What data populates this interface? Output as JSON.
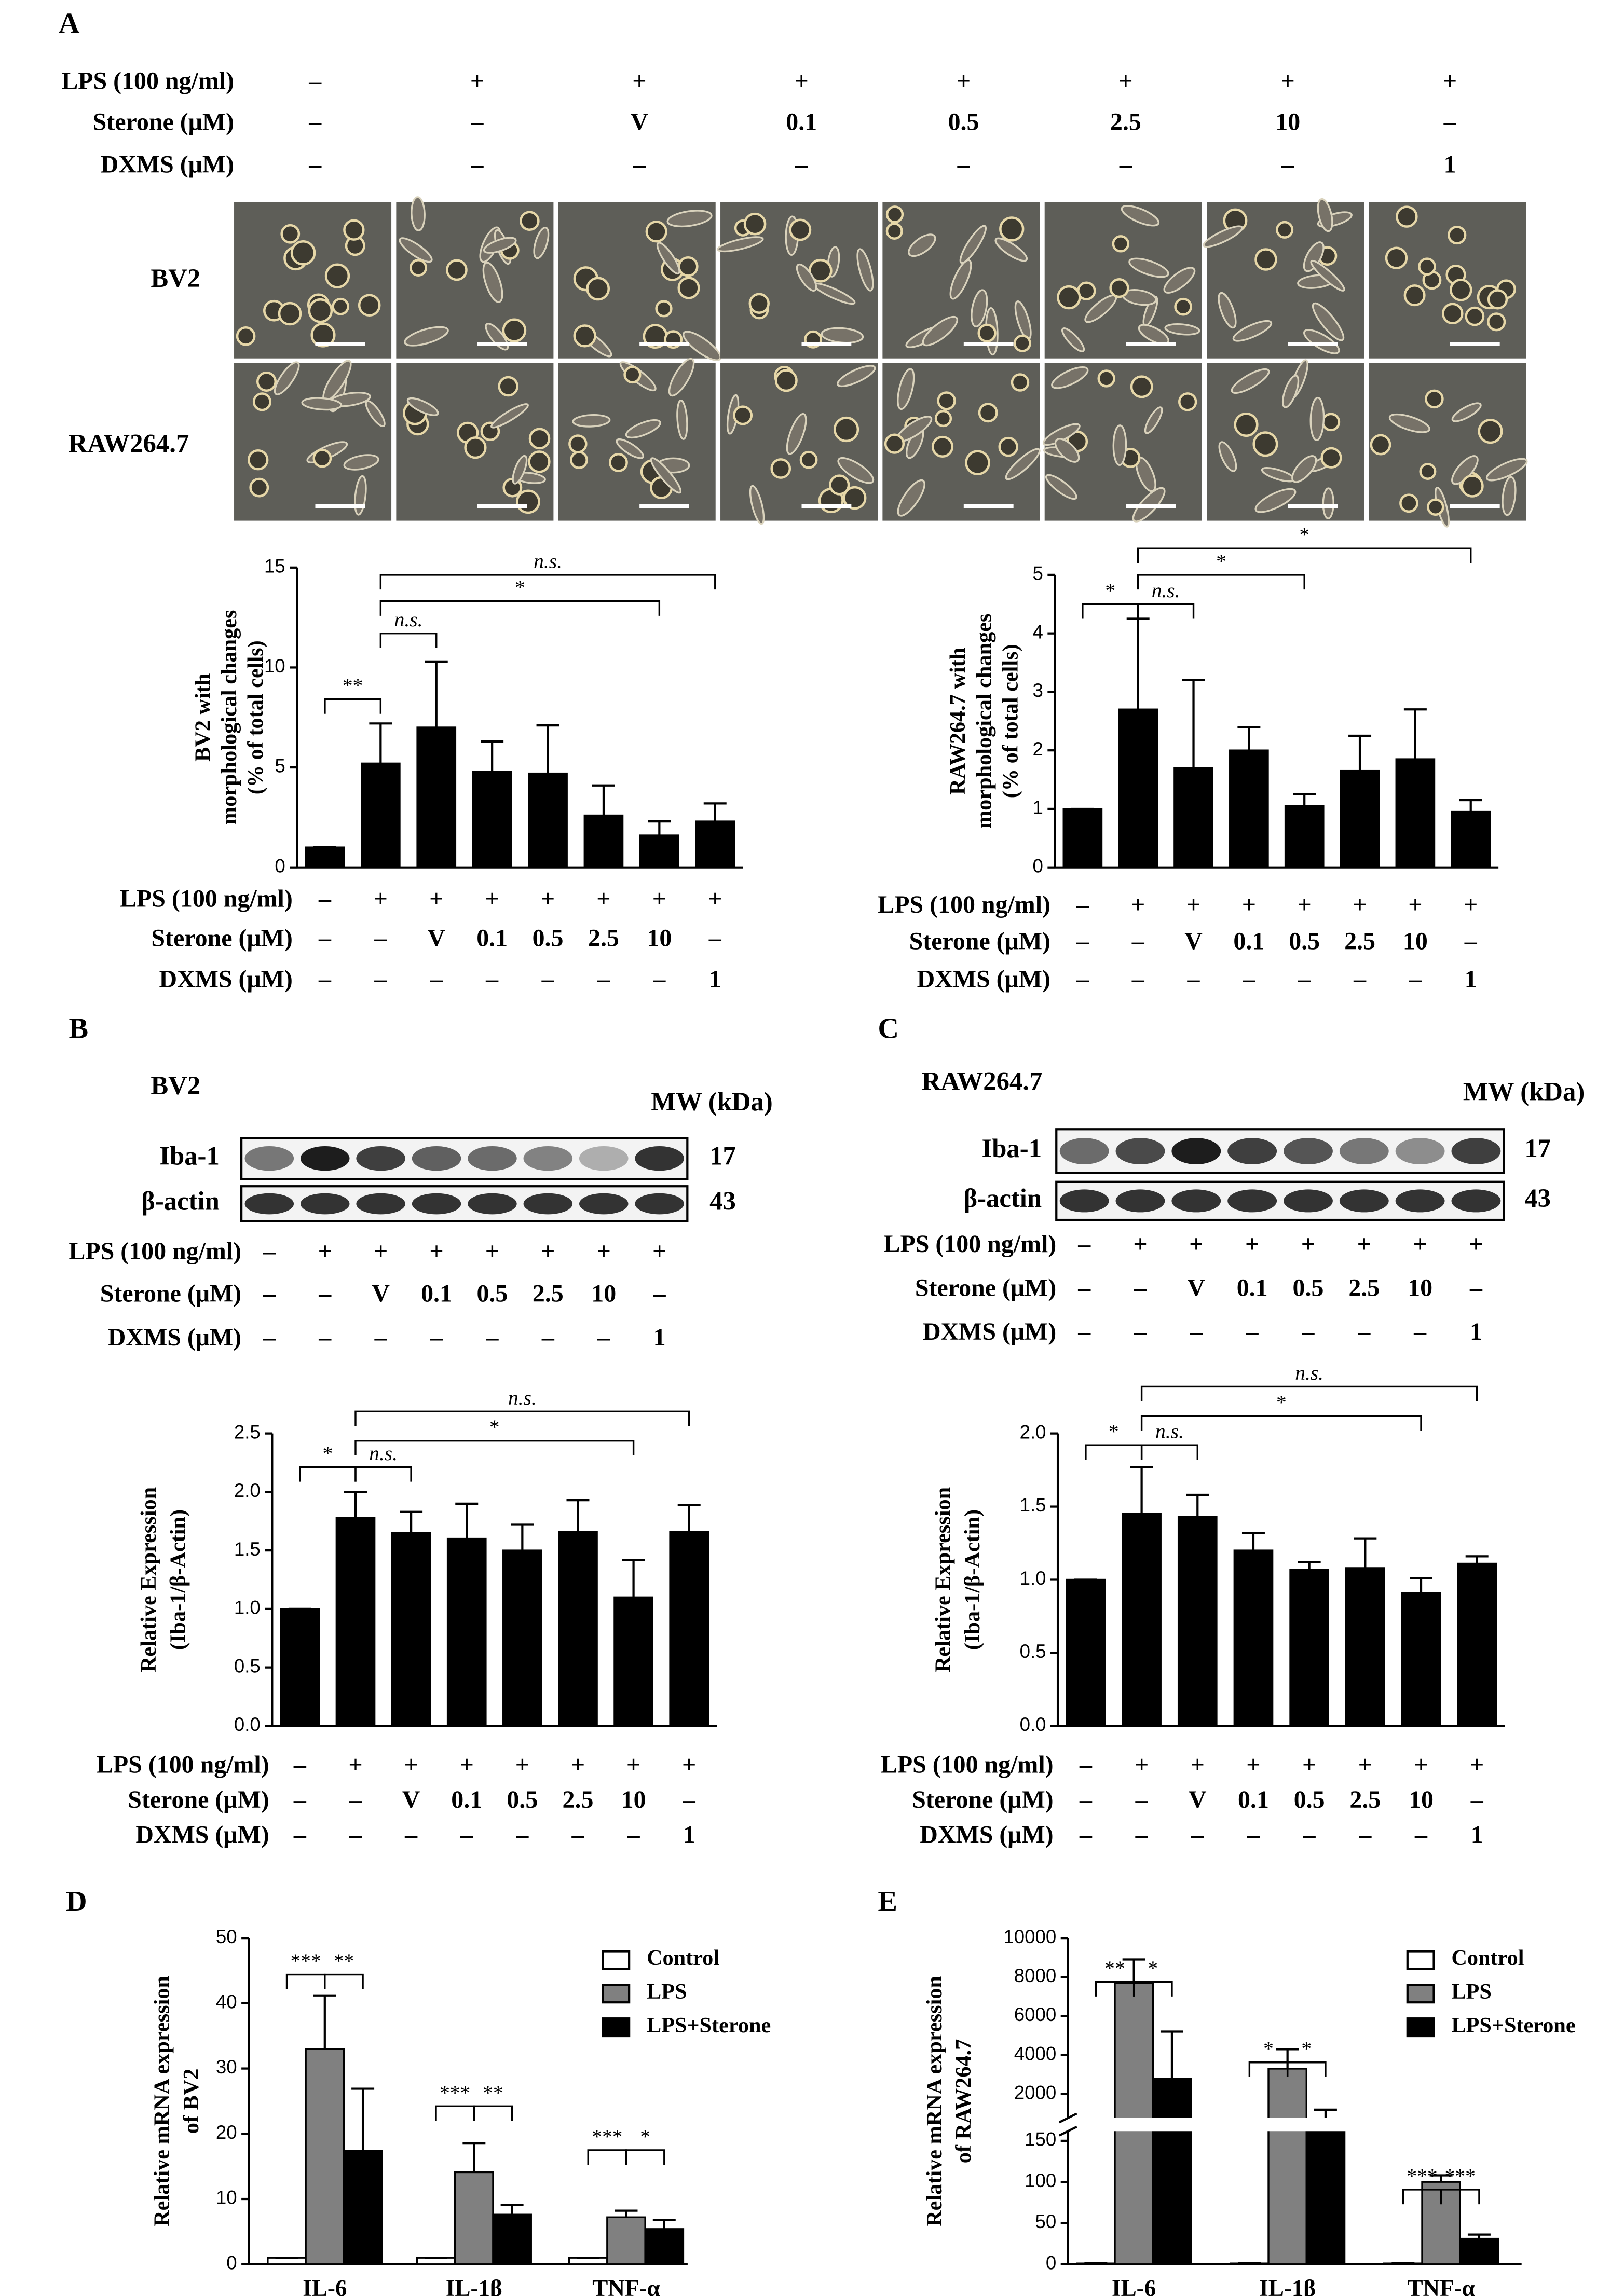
{
  "panel_labels": [
    "A",
    "B",
    "C",
    "D",
    "E"
  ],
  "panel_A": {
    "cell_lines": [
      "BV2",
      "RAW264.7"
    ],
    "treatments": [
      {
        "label": "LPS (100 ng/ml)",
        "cells": [
          "–",
          "+",
          "+",
          "+",
          "+",
          "+",
          "+",
          "+"
        ]
      },
      {
        "label": "Sterone (μM)",
        "cells": [
          "–",
          "–",
          "V",
          "0.1",
          "0.5",
          "2.5",
          "10",
          "–"
        ]
      },
      {
        "label": "DXMS (μM)",
        "cells": [
          "–",
          "–",
          "–",
          "–",
          "–",
          "–",
          "–",
          "1"
        ]
      }
    ]
  },
  "panel_B": {
    "cell_line": "BV2",
    "mw_header": "MW (kDa)",
    "blots": [
      {
        "protein": "Iba-1",
        "mw": 17
      },
      {
        "protein": "β-actin",
        "mw": 43
      }
    ],
    "treatments": [
      {
        "label": "LPS (100 ng/ml)",
        "cells": [
          "–",
          "+",
          "+",
          "+",
          "+",
          "+",
          "+",
          "+"
        ]
      },
      {
        "label": "Sterone (μM)",
        "cells": [
          "–",
          "–",
          "V",
          "0.1",
          "0.5",
          "2.5",
          "10",
          "–"
        ]
      },
      {
        "label": "DXMS (μM)",
        "cells": [
          "–",
          "–",
          "–",
          "–",
          "–",
          "–",
          "–",
          "1"
        ]
      }
    ]
  },
  "panel_C": {
    "cell_line": "RAW264.7",
    "mw_header": "MW (kDa)",
    "blots": [
      {
        "protein": "Iba-1",
        "mw": 17
      },
      {
        "protein": "β-actin",
        "mw": 43
      }
    ],
    "treatments": [
      {
        "label": "LPS (100 ng/ml)",
        "cells": [
          "–",
          "+",
          "+",
          "+",
          "+",
          "+",
          "+",
          "+"
        ]
      },
      {
        "label": "Sterone (μM)",
        "cells": [
          "–",
          "–",
          "V",
          "0.1",
          "0.5",
          "2.5",
          "10",
          "–"
        ]
      },
      {
        "label": "DXMS (μM)",
        "cells": [
          "–",
          "–",
          "–",
          "–",
          "–",
          "–",
          "–",
          "1"
        ]
      }
    ]
  },
  "chart_data": [
    {
      "type": "bar",
      "ylabel": [
        "BV2 with",
        "morphological changes",
        "(% of total cells)"
      ],
      "categories": [
        null,
        null,
        null,
        null,
        null,
        null,
        null,
        null
      ],
      "values": [
        1,
        5.2,
        7.0,
        4.8,
        4.7,
        2.6,
        1.6,
        2.3
      ],
      "errors": [
        0,
        2.0,
        3.3,
        1.5,
        2.4,
        1.5,
        0.7,
        0.9
      ],
      "color": "#000000",
      "ylim": [
        0,
        15
      ],
      "yticks": [
        0,
        5,
        10,
        15
      ],
      "comparisons": [
        {
          "between": [
            0,
            1
          ],
          "label": "**"
        },
        {
          "between": [
            1,
            2
          ],
          "label": "n.s."
        },
        {
          "between": [
            1,
            6
          ],
          "label": "*"
        },
        {
          "between": [
            1,
            7
          ],
          "label": "n.s."
        }
      ],
      "treatments": [
        {
          "label": "LPS (100 ng/ml)",
          "cells": [
            "–",
            "+",
            "+",
            "+",
            "+",
            "+",
            "+",
            "+"
          ]
        },
        {
          "label": "Sterone (μM)",
          "cells": [
            "–",
            "–",
            "V",
            "0.1",
            "0.5",
            "2.5",
            "10",
            "–"
          ]
        },
        {
          "label": "DXMS (μM)",
          "cells": [
            "–",
            "–",
            "–",
            "–",
            "–",
            "–",
            "–",
            "1"
          ]
        }
      ]
    },
    {
      "type": "bar",
      "ylabel": [
        "RAW264.7 with",
        "morphological changes",
        "(% of total cells)"
      ],
      "categories": [
        null,
        null,
        null,
        null,
        null,
        null,
        null,
        null
      ],
      "values": [
        1,
        2.7,
        1.7,
        2.0,
        1.05,
        1.65,
        1.85,
        0.95
      ],
      "errors": [
        0,
        1.55,
        1.5,
        0.4,
        0.2,
        0.6,
        0.85,
        0.2
      ],
      "color": "#000000",
      "ylim": [
        0,
        5
      ],
      "yticks": [
        0,
        1,
        2,
        3,
        4,
        5
      ],
      "comparisons": [
        {
          "between": [
            0,
            1
          ],
          "label": "*"
        },
        {
          "between": [
            1,
            2
          ],
          "label": "n.s."
        },
        {
          "between": [
            1,
            4
          ],
          "label": "*"
        },
        {
          "between": [
            1,
            7
          ],
          "label": "*"
        }
      ],
      "treatments": [
        {
          "label": "LPS (100 ng/ml)",
          "cells": [
            "–",
            "+",
            "+",
            "+",
            "+",
            "+",
            "+",
            "+"
          ]
        },
        {
          "label": "Sterone (μM)",
          "cells": [
            "–",
            "–",
            "V",
            "0.1",
            "0.5",
            "2.5",
            "10",
            "–"
          ]
        },
        {
          "label": "DXMS (μM)",
          "cells": [
            "–",
            "–",
            "–",
            "–",
            "–",
            "–",
            "–",
            "1"
          ]
        }
      ]
    },
    {
      "type": "bar",
      "ylabel": [
        "Relative Expression",
        "(Iba-1/β-Actin)"
      ],
      "categories": [
        null,
        null,
        null,
        null,
        null,
        null,
        null,
        null
      ],
      "values": [
        1.0,
        1.78,
        1.65,
        1.6,
        1.5,
        1.66,
        1.1,
        1.66
      ],
      "errors": [
        0,
        0.22,
        0.18,
        0.3,
        0.22,
        0.27,
        0.32,
        0.23
      ],
      "color": "#000000",
      "ylim": [
        0,
        2.5
      ],
      "yticks": [
        {
          "value": 0,
          "label": "0.0"
        },
        0.5,
        {
          "value": 1,
          "label": "1.0"
        },
        1.5,
        {
          "value": 2,
          "label": "2.0"
        },
        2.5
      ],
      "comparisons": [
        {
          "between": [
            0,
            1
          ],
          "label": "*"
        },
        {
          "between": [
            1,
            2
          ],
          "label": "n.s."
        },
        {
          "between": [
            1,
            6
          ],
          "label": "*"
        },
        {
          "between": [
            1,
            7
          ],
          "label": "n.s."
        }
      ],
      "treatments": [
        {
          "label": "LPS (100 ng/ml)",
          "cells": [
            "–",
            "+",
            "+",
            "+",
            "+",
            "+",
            "+",
            "+"
          ]
        },
        {
          "label": "Sterone (μM)",
          "cells": [
            "–",
            "–",
            "V",
            "0.1",
            "0.5",
            "2.5",
            "10",
            "–"
          ]
        },
        {
          "label": "DXMS (μM)",
          "cells": [
            "–",
            "–",
            "–",
            "–",
            "–",
            "–",
            "–",
            "1"
          ]
        }
      ]
    },
    {
      "type": "bar",
      "ylabel": [
        "Relative Expression",
        "(Iba-1/β-Actin)"
      ],
      "categories": [
        null,
        null,
        null,
        null,
        null,
        null,
        null,
        null
      ],
      "values": [
        1.0,
        1.45,
        1.43,
        1.2,
        1.07,
        1.08,
        0.91,
        1.11
      ],
      "errors": [
        0,
        0.32,
        0.15,
        0.12,
        0.05,
        0.2,
        0.1,
        0.05
      ],
      "color": "#000000",
      "ylim": [
        0,
        2
      ],
      "yticks": [
        {
          "value": 0,
          "label": "0.0"
        },
        0.5,
        {
          "value": 1,
          "label": "1.0"
        },
        1.5,
        {
          "value": 2,
          "label": "2.0"
        }
      ],
      "comparisons": [
        {
          "between": [
            0,
            1
          ],
          "label": "*"
        },
        {
          "between": [
            1,
            2
          ],
          "label": "n.s."
        },
        {
          "between": [
            1,
            6
          ],
          "label": "*"
        },
        {
          "between": [
            1,
            7
          ],
          "label": "n.s."
        }
      ],
      "treatments": [
        {
          "label": "LPS (100 ng/ml)",
          "cells": [
            "–",
            "+",
            "+",
            "+",
            "+",
            "+",
            "+",
            "+"
          ]
        },
        {
          "label": "Sterone (μM)",
          "cells": [
            "–",
            "–",
            "V",
            "0.1",
            "0.5",
            "2.5",
            "10",
            "–"
          ]
        },
        {
          "label": "DXMS (μM)",
          "cells": [
            "–",
            "–",
            "–",
            "–",
            "–",
            "–",
            "–",
            "1"
          ]
        }
      ]
    },
    {
      "type": "grouped_bar",
      "ylabel": [
        "Relative mRNA expression",
        "of BV2"
      ],
      "categories": [
        "IL-6",
        "IL-1β",
        "TNF-α"
      ],
      "series": [
        {
          "name": "Control",
          "color": "#ffffff",
          "values": [
            1,
            1,
            1
          ],
          "errors": [
            0,
            0,
            0
          ]
        },
        {
          "name": "LPS",
          "color": "#808080",
          "values": [
            33,
            14.1,
            7.2
          ],
          "errors": [
            8.2,
            4.4,
            1.0
          ]
        },
        {
          "name": "LPS+Sterone",
          "color": "#000000",
          "values": [
            17.4,
            7.6,
            5.4
          ],
          "errors": [
            9.5,
            1.5,
            1.4
          ]
        }
      ],
      "ylim": [
        0,
        50
      ],
      "yticks": [
        0,
        10,
        20,
        30,
        40,
        50
      ],
      "comparisons": [
        {
          "category": 0,
          "between": [
            0,
            1
          ],
          "label": "***"
        },
        {
          "category": 0,
          "between": [
            1,
            2
          ],
          "label": "**"
        },
        {
          "category": 1,
          "between": [
            0,
            1
          ],
          "label": "***"
        },
        {
          "category": 1,
          "between": [
            1,
            2
          ],
          "label": "**"
        },
        {
          "category": 2,
          "between": [
            0,
            1
          ],
          "label": "***"
        },
        {
          "category": 2,
          "between": [
            1,
            2
          ],
          "label": "*"
        }
      ]
    },
    {
      "type": "grouped_bar",
      "ylabel": [
        "Relative mRNA expression",
        "of RAW264.7"
      ],
      "categories": [
        "IL-6",
        "IL-1β",
        "TNF-α"
      ],
      "series": [
        {
          "name": "Control",
          "color": "#ffffff",
          "values": [
            1,
            1,
            1
          ],
          "errors": [
            0,
            0,
            0
          ]
        },
        {
          "name": "LPS",
          "color": "#808080",
          "values": [
            7700,
            3300,
            100
          ],
          "errors": [
            1200,
            1000,
            8
          ]
        },
        {
          "name": "LPS+Sterone",
          "color": "#000000",
          "values": [
            2800,
            700,
            31
          ],
          "errors": [
            2400,
            500,
            5
          ]
        }
      ],
      "y_segments": [
        {
          "ylim": [
            0,
            160
          ],
          "yticks": [
            0,
            50,
            100,
            150
          ]
        },
        {
          "ylim": [
            850,
            10000
          ],
          "yticks": [
            2000,
            4000,
            6000,
            8000,
            10000
          ]
        }
      ],
      "comparisons": [
        {
          "category": 0,
          "between": [
            0,
            1
          ],
          "label": "**"
        },
        {
          "category": 0,
          "between": [
            1,
            2
          ],
          "label": "*"
        },
        {
          "category": 1,
          "between": [
            0,
            1
          ],
          "label": "*"
        },
        {
          "category": 1,
          "between": [
            1,
            2
          ],
          "label": "*"
        },
        {
          "category": 2,
          "between": [
            0,
            1
          ],
          "label": "***"
        },
        {
          "category": 2,
          "between": [
            1,
            2
          ],
          "label": "***"
        }
      ]
    }
  ]
}
